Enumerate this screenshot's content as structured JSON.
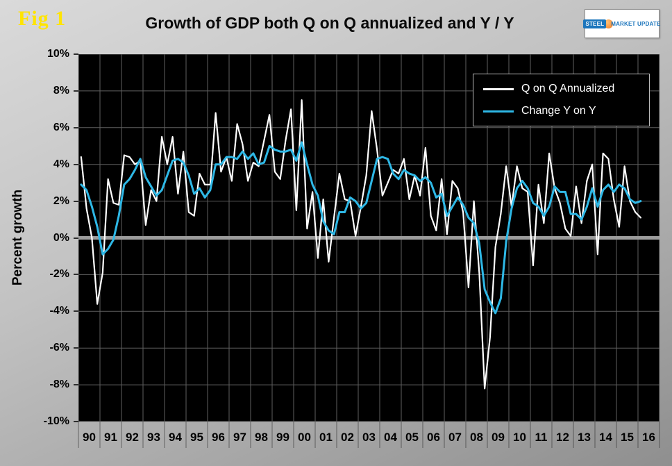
{
  "header": {
    "fig_label": "Fig 1",
    "logo": {
      "steel": "STEEL",
      "market_update": "MARKET UPDATE"
    }
  },
  "chart_data": {
    "type": "line",
    "title": "Growth of GDP both Q on Q annualized and Y / Y",
    "xlabel": "",
    "ylabel": "Percent growth",
    "ylim": [
      -10,
      10
    ],
    "ytick_step": 2,
    "grid": true,
    "legend_position": "top-right-inside",
    "plot_background": "#000000",
    "colors": {
      "grid": "#5f5f5f",
      "zero_line": "#9c9c9c",
      "axis_text": "#000000"
    },
    "x_start": "1990 Q1",
    "x_end": "2016 Q1",
    "axis_total_quarters": 108,
    "x_tick_labels": [
      "90",
      "91",
      "92",
      "93",
      "94",
      "95",
      "96",
      "97",
      "98",
      "99",
      "00",
      "01",
      "02",
      "03",
      "04",
      "05",
      "06",
      "07",
      "08",
      "09",
      "10",
      "11",
      "12",
      "13",
      "14",
      "15",
      "16"
    ],
    "series": [
      {
        "name": "Q on Q Annualized",
        "color": "#ffffff",
        "stroke_width": 2.2,
        "values": [
          4.4,
          1.6,
          0.0,
          -3.6,
          -1.9,
          3.2,
          1.9,
          1.8,
          4.5,
          4.4,
          4.0,
          4.2,
          0.7,
          2.6,
          2.0,
          5.5,
          4.0,
          5.5,
          2.4,
          4.7,
          1.4,
          1.2,
          3.5,
          2.9,
          2.9,
          6.8,
          3.6,
          4.4,
          3.1,
          6.2,
          5.1,
          3.1,
          4.1,
          3.9,
          5.3,
          6.7,
          3.6,
          3.2,
          5.3,
          7.0,
          1.5,
          7.5,
          0.5,
          2.5,
          -1.1,
          2.1,
          -1.3,
          1.1,
          3.5,
          2.1,
          2.0,
          0.1,
          1.7,
          3.4,
          6.9,
          4.8,
          2.3,
          3.0,
          3.7,
          3.5,
          4.3,
          2.1,
          3.4,
          2.3,
          4.9,
          1.2,
          0.4,
          3.2,
          0.2,
          3.1,
          2.7,
          1.4,
          -2.7,
          2.0,
          -1.9,
          -8.2,
          -5.4,
          -0.5,
          1.3,
          3.9,
          1.7,
          3.9,
          2.7,
          2.5,
          -1.5,
          2.9,
          0.8,
          4.6,
          2.7,
          1.9,
          0.5,
          0.1,
          2.8,
          0.8,
          3.1,
          4.0,
          -0.9,
          4.6,
          4.3,
          2.1,
          0.6,
          3.9,
          2.0,
          1.4,
          1.1
        ]
      },
      {
        "name": "Change Y on Y",
        "color": "#2eb8e6",
        "stroke_width": 3,
        "values": [
          2.9,
          2.6,
          1.7,
          0.6,
          -0.9,
          -0.6,
          -0.1,
          1.2,
          2.9,
          3.2,
          3.7,
          4.3,
          3.3,
          2.8,
          2.3,
          2.6,
          3.4,
          4.2,
          4.3,
          4.1,
          3.4,
          2.4,
          2.7,
          2.2,
          2.6,
          4.0,
          4.0,
          4.4,
          4.4,
          4.3,
          4.7,
          4.3,
          4.6,
          4.0,
          4.1,
          5.0,
          4.8,
          4.7,
          4.7,
          4.8,
          4.2,
          5.2,
          4.0,
          2.9,
          2.3,
          0.9,
          0.4,
          0.2,
          1.4,
          1.4,
          2.2,
          2.0,
          1.6,
          1.9,
          3.1,
          4.3,
          4.4,
          4.3,
          3.5,
          3.2,
          3.7,
          3.5,
          3.4,
          3.1,
          3.3,
          3.0,
          2.2,
          2.4,
          1.2,
          1.7,
          2.2,
          1.8,
          1.1,
          0.8,
          -0.3,
          -2.8,
          -3.5,
          -4.1,
          -3.3,
          -0.2,
          1.6,
          2.7,
          3.1,
          2.7,
          1.9,
          1.7,
          1.2,
          1.7,
          2.8,
          2.5,
          2.5,
          1.3,
          1.3,
          1.0,
          1.7,
          2.7,
          1.7,
          2.6,
          2.9,
          2.5,
          2.9,
          2.7,
          2.1,
          1.9,
          2.0
        ]
      }
    ]
  }
}
